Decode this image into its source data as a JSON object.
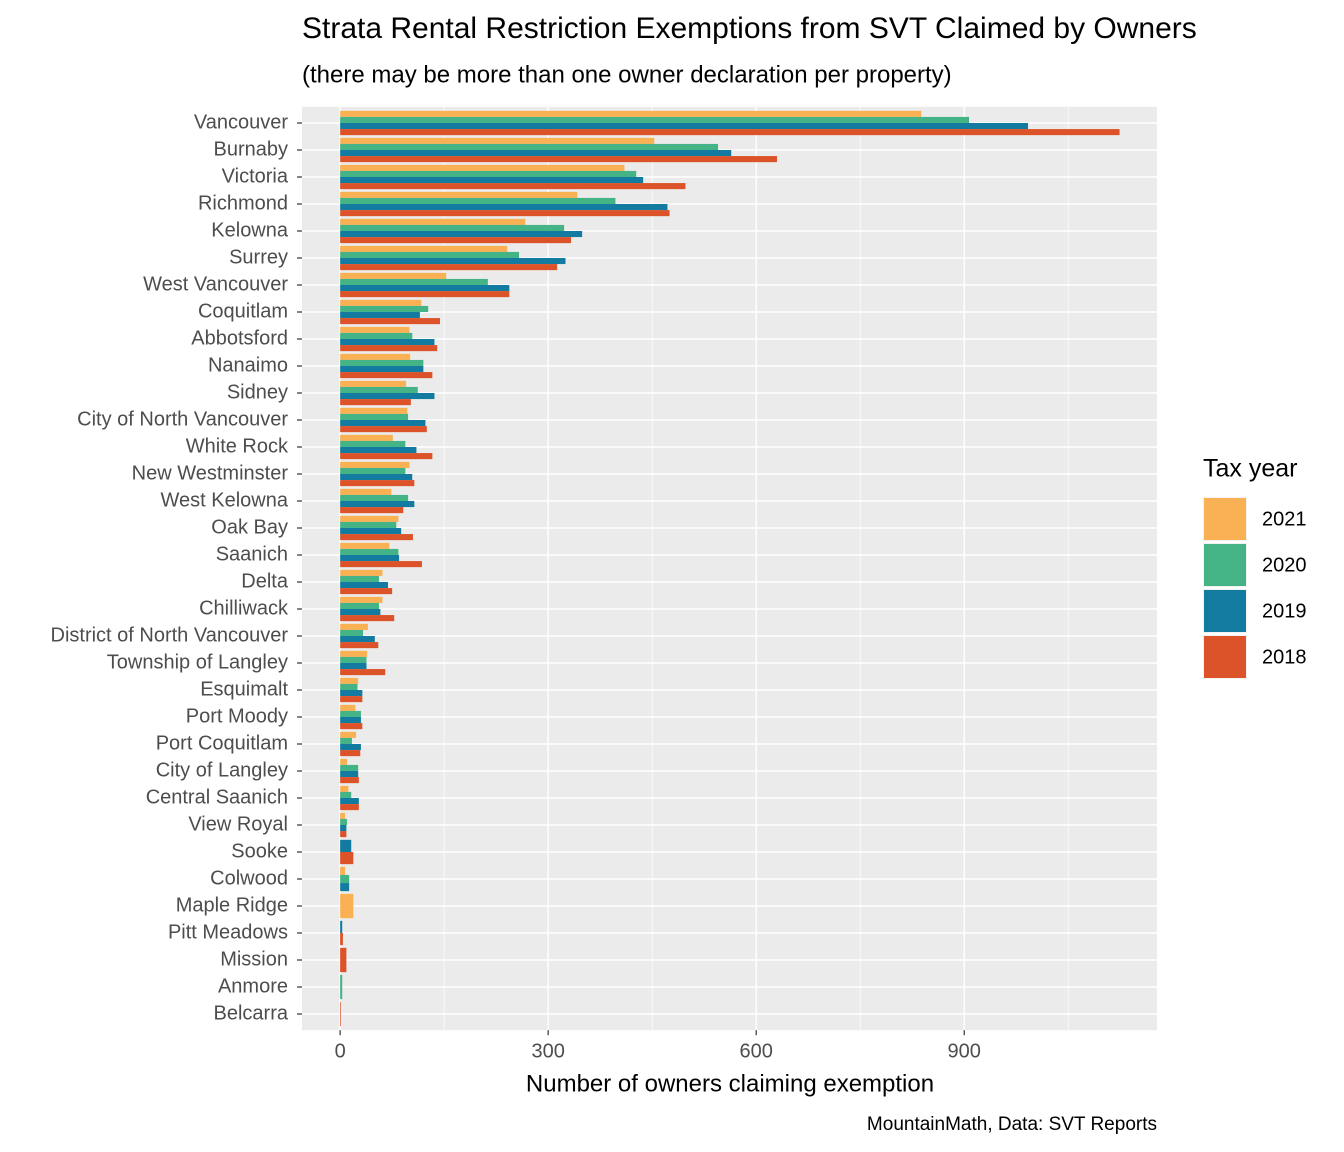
{
  "chart_data": {
    "type": "grouped-hbar",
    "title": "Strata Rental Restriction Exemptions from SVT Claimed by Owners",
    "subtitle": "(there may be more than one owner declaration per property)",
    "x_label": "Number of owners claiming exemption",
    "caption": "MountainMath, Data: SVT Reports",
    "legend_title": "Tax year",
    "categories": [
      "Vancouver",
      "Burnaby",
      "Victoria",
      "Richmond",
      "Kelowna",
      "Surrey",
      "West Vancouver",
      "Coquitlam",
      "Abbotsford",
      "Nanaimo",
      "Sidney",
      "City of North Vancouver",
      "White Rock",
      "New Westminster",
      "West Kelowna",
      "Oak Bay",
      "Saanich",
      "Delta",
      "Chilliwack",
      "District of North Vancouver",
      "Township of Langley",
      "Esquimalt",
      "Port Moody",
      "Port Coquitlam",
      "City of Langley",
      "Central Saanich",
      "View Royal",
      "Sooke",
      "Colwood",
      "Maple Ridge",
      "Pitt Meadows",
      "Mission",
      "Anmore",
      "Belcarra"
    ],
    "series": [
      {
        "name": "2021",
        "color": "#F9B153",
        "values": [
          838,
          453,
          410,
          342,
          267,
          241,
          153,
          117,
          100,
          101,
          95,
          97,
          76,
          100,
          74,
          84,
          71,
          61,
          61,
          40,
          39,
          26,
          22,
          23,
          10,
          12,
          7,
          null,
          7,
          19,
          null,
          null,
          null,
          null
        ]
      },
      {
        "name": "2020",
        "color": "#44B486",
        "values": [
          907,
          545,
          427,
          397,
          323,
          258,
          213,
          127,
          104,
          120,
          112,
          98,
          94,
          94,
          98,
          81,
          84,
          56,
          56,
          33,
          38,
          25,
          30,
          17,
          26,
          16,
          10,
          null,
          13,
          null,
          null,
          null,
          3,
          null
        ]
      },
      {
        "name": "2019",
        "color": "#137AA0",
        "values": [
          992,
          564,
          437,
          472,
          349,
          325,
          244,
          115,
          136,
          120,
          136,
          123,
          110,
          104,
          107,
          88,
          85,
          69,
          58,
          50,
          38,
          32,
          30,
          30,
          26,
          27,
          9,
          16,
          13,
          null,
          3,
          null,
          null,
          null
        ]
      },
      {
        "name": "2018",
        "color": "#DC5229",
        "values": [
          1124,
          630,
          498,
          475,
          333,
          313,
          244,
          144,
          140,
          133,
          102,
          125,
          133,
          107,
          91,
          105,
          118,
          75,
          78,
          55,
          65,
          32,
          32,
          29,
          27,
          27,
          9,
          19,
          null,
          null,
          4,
          9,
          null,
          1
        ]
      }
    ],
    "xlim": [
      -55,
      1178
    ],
    "xticks": [
      0,
      300,
      600,
      900
    ],
    "grid": true,
    "legend_position": "right"
  }
}
